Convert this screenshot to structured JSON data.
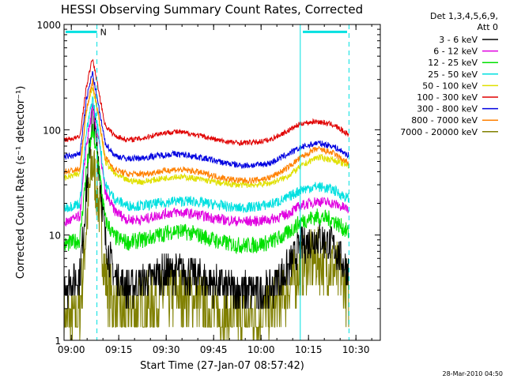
{
  "chart_data": {
    "type": "line",
    "title": "HESSI Observing Summary Count Rates, Corrected",
    "xlabel": "Start Time (27-Jan-07 08:57:42)",
    "ylabel": "Corrected Count Rate (s⁻¹ detector⁻¹)",
    "x_unit": "minutes after 08:57:42",
    "xlim": [
      0,
      100
    ],
    "ylim": [
      1,
      1000
    ],
    "yscale": "log",
    "grid": false,
    "xticks": [
      {
        "value": 2.3,
        "label": "09:00"
      },
      {
        "value": 17.3,
        "label": "09:15"
      },
      {
        "value": 32.3,
        "label": "09:30"
      },
      {
        "value": 47.3,
        "label": "09:45"
      },
      {
        "value": 62.3,
        "label": "10:00"
      },
      {
        "value": 77.3,
        "label": "10:15"
      },
      {
        "value": 92.3,
        "label": "10:30"
      }
    ],
    "yticks": [
      {
        "value": 1,
        "label": "1"
      },
      {
        "value": 10,
        "label": "10"
      },
      {
        "value": 100,
        "label": "100"
      },
      {
        "value": 1000,
        "label": "1000"
      }
    ],
    "legend_header": [
      "Det 1,3,4,5,6,9,",
      "Att 0"
    ],
    "legend_placement": "right",
    "timestamp": "28-Mar-2010 04:50",
    "night_marker": "N",
    "annotation_lines": [
      {
        "x": 10.4,
        "style": "dashed",
        "color": "#00e0e0"
      },
      {
        "x": 74.7,
        "style": "solid",
        "color": "#00e0e0"
      },
      {
        "x": 90.1,
        "style": "dashed",
        "color": "#00e0e0"
      }
    ],
    "annotation_bars": [
      {
        "x0": 0.5,
        "x1": 10.4,
        "y": 850,
        "color": "#00e0e0"
      },
      {
        "x0": 75.5,
        "x1": 89.5,
        "y": 850,
        "color": "#00e0e0"
      }
    ],
    "x": [
      0,
      5,
      7,
      9,
      11,
      13,
      16,
      20,
      25,
      30,
      35,
      40,
      45,
      50,
      55,
      60,
      65,
      70,
      75,
      80,
      85,
      90
    ],
    "series": [
      {
        "name": "3 - 6 keV",
        "color": "#000000",
        "noise": 0.18,
        "values": [
          3.3,
          4,
          25,
          150,
          50,
          9,
          4,
          3.2,
          3.5,
          4.3,
          4.5,
          4.3,
          3.6,
          3.3,
          3,
          2.9,
          3,
          4.5,
          8,
          9.5,
          8,
          4.5
        ]
      },
      {
        "name": "6 - 12 keV",
        "color": "#e000e0",
        "noise": 0.05,
        "values": [
          13,
          15,
          70,
          160,
          80,
          25,
          17,
          14,
          14,
          15.5,
          16.5,
          16,
          15,
          14,
          13.5,
          13.5,
          14,
          15.5,
          19,
          21,
          20,
          17.5
        ]
      },
      {
        "name": "12 - 25 keV",
        "color": "#00e000",
        "noise": 0.08,
        "values": [
          8,
          9,
          40,
          100,
          45,
          14,
          9.5,
          8.5,
          9,
          10,
          11,
          10.5,
          9.5,
          8.5,
          8,
          8,
          8.5,
          10,
          13.5,
          15,
          14,
          10.5
        ]
      },
      {
        "name": "25 - 50 keV",
        "color": "#00e0e0",
        "noise": 0.05,
        "values": [
          18,
          20,
          90,
          200,
          90,
          30,
          22,
          19,
          19,
          20,
          21,
          21,
          20,
          19,
          18,
          18.5,
          19.5,
          22,
          27,
          29,
          27,
          22
        ]
      },
      {
        "name": "50 - 100 keV",
        "color": "#e0e000",
        "noise": 0.03,
        "values": [
          35,
          38,
          150,
          260,
          130,
          50,
          38,
          33,
          32,
          34,
          36,
          35,
          33,
          31,
          30,
          30,
          31,
          35,
          45,
          55,
          52,
          45
        ]
      },
      {
        "name": "100 - 300 keV",
        "color": "#e00000",
        "noise": 0.025,
        "values": [
          80,
          85,
          250,
          480,
          230,
          110,
          88,
          80,
          83,
          92,
          96,
          92,
          85,
          78,
          75,
          76,
          80,
          95,
          115,
          120,
          112,
          90
        ]
      },
      {
        "name": "300 - 800 keV",
        "color": "#0000e0",
        "noise": 0.03,
        "values": [
          55,
          58,
          190,
          350,
          160,
          75,
          57,
          53,
          54,
          57,
          59,
          57,
          53,
          49,
          46,
          46,
          48,
          57,
          68,
          75,
          70,
          57
        ]
      },
      {
        "name": "800 - 7000 keV",
        "color": "#ff8000",
        "noise": 0.03,
        "values": [
          40,
          42,
          150,
          290,
          130,
          55,
          42,
          38,
          38,
          40,
          42,
          41,
          38,
          35,
          33,
          33,
          35,
          42,
          55,
          66,
          60,
          48
        ]
      },
      {
        "name": "7000 - 20000 keV",
        "color": "#808000",
        "noise": 0.3,
        "values": [
          1.5,
          1.8,
          12,
          50,
          20,
          4,
          2,
          1.8,
          2.2,
          2.6,
          2.8,
          2.6,
          2.2,
          1.7,
          1.5,
          1.6,
          1.8,
          2.8,
          5,
          6,
          5,
          3
        ]
      }
    ]
  }
}
